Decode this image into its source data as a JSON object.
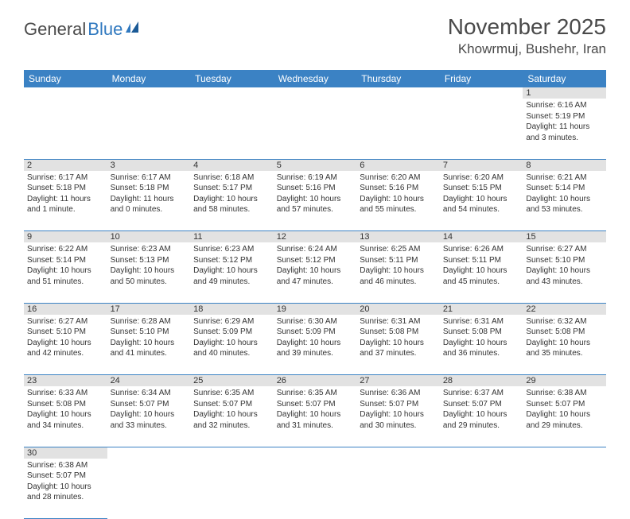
{
  "header": {
    "logo_general": "General",
    "logo_blue": "Blue",
    "month_title": "November 2025",
    "location": "Khowrmuj, Bushehr, Iran"
  },
  "colors": {
    "header_bg": "#3b82c4",
    "header_text": "#ffffff",
    "daynum_bg": "#e2e2e2",
    "border": "#3b82c4",
    "text": "#333333",
    "logo_gray": "#4a4a4a",
    "logo_blue": "#2f78bf"
  },
  "weekdays": [
    "Sunday",
    "Monday",
    "Tuesday",
    "Wednesday",
    "Thursday",
    "Friday",
    "Saturday"
  ],
  "weeks": [
    [
      null,
      null,
      null,
      null,
      null,
      null,
      {
        "n": "1",
        "sr": "Sunrise: 6:16 AM",
        "ss": "Sunset: 5:19 PM",
        "dl": "Daylight: 11 hours and 3 minutes."
      }
    ],
    [
      {
        "n": "2",
        "sr": "Sunrise: 6:17 AM",
        "ss": "Sunset: 5:18 PM",
        "dl": "Daylight: 11 hours and 1 minute."
      },
      {
        "n": "3",
        "sr": "Sunrise: 6:17 AM",
        "ss": "Sunset: 5:18 PM",
        "dl": "Daylight: 11 hours and 0 minutes."
      },
      {
        "n": "4",
        "sr": "Sunrise: 6:18 AM",
        "ss": "Sunset: 5:17 PM",
        "dl": "Daylight: 10 hours and 58 minutes."
      },
      {
        "n": "5",
        "sr": "Sunrise: 6:19 AM",
        "ss": "Sunset: 5:16 PM",
        "dl": "Daylight: 10 hours and 57 minutes."
      },
      {
        "n": "6",
        "sr": "Sunrise: 6:20 AM",
        "ss": "Sunset: 5:16 PM",
        "dl": "Daylight: 10 hours and 55 minutes."
      },
      {
        "n": "7",
        "sr": "Sunrise: 6:20 AM",
        "ss": "Sunset: 5:15 PM",
        "dl": "Daylight: 10 hours and 54 minutes."
      },
      {
        "n": "8",
        "sr": "Sunrise: 6:21 AM",
        "ss": "Sunset: 5:14 PM",
        "dl": "Daylight: 10 hours and 53 minutes."
      }
    ],
    [
      {
        "n": "9",
        "sr": "Sunrise: 6:22 AM",
        "ss": "Sunset: 5:14 PM",
        "dl": "Daylight: 10 hours and 51 minutes."
      },
      {
        "n": "10",
        "sr": "Sunrise: 6:23 AM",
        "ss": "Sunset: 5:13 PM",
        "dl": "Daylight: 10 hours and 50 minutes."
      },
      {
        "n": "11",
        "sr": "Sunrise: 6:23 AM",
        "ss": "Sunset: 5:12 PM",
        "dl": "Daylight: 10 hours and 49 minutes."
      },
      {
        "n": "12",
        "sr": "Sunrise: 6:24 AM",
        "ss": "Sunset: 5:12 PM",
        "dl": "Daylight: 10 hours and 47 minutes."
      },
      {
        "n": "13",
        "sr": "Sunrise: 6:25 AM",
        "ss": "Sunset: 5:11 PM",
        "dl": "Daylight: 10 hours and 46 minutes."
      },
      {
        "n": "14",
        "sr": "Sunrise: 6:26 AM",
        "ss": "Sunset: 5:11 PM",
        "dl": "Daylight: 10 hours and 45 minutes."
      },
      {
        "n": "15",
        "sr": "Sunrise: 6:27 AM",
        "ss": "Sunset: 5:10 PM",
        "dl": "Daylight: 10 hours and 43 minutes."
      }
    ],
    [
      {
        "n": "16",
        "sr": "Sunrise: 6:27 AM",
        "ss": "Sunset: 5:10 PM",
        "dl": "Daylight: 10 hours and 42 minutes."
      },
      {
        "n": "17",
        "sr": "Sunrise: 6:28 AM",
        "ss": "Sunset: 5:10 PM",
        "dl": "Daylight: 10 hours and 41 minutes."
      },
      {
        "n": "18",
        "sr": "Sunrise: 6:29 AM",
        "ss": "Sunset: 5:09 PM",
        "dl": "Daylight: 10 hours and 40 minutes."
      },
      {
        "n": "19",
        "sr": "Sunrise: 6:30 AM",
        "ss": "Sunset: 5:09 PM",
        "dl": "Daylight: 10 hours and 39 minutes."
      },
      {
        "n": "20",
        "sr": "Sunrise: 6:31 AM",
        "ss": "Sunset: 5:08 PM",
        "dl": "Daylight: 10 hours and 37 minutes."
      },
      {
        "n": "21",
        "sr": "Sunrise: 6:31 AM",
        "ss": "Sunset: 5:08 PM",
        "dl": "Daylight: 10 hours and 36 minutes."
      },
      {
        "n": "22",
        "sr": "Sunrise: 6:32 AM",
        "ss": "Sunset: 5:08 PM",
        "dl": "Daylight: 10 hours and 35 minutes."
      }
    ],
    [
      {
        "n": "23",
        "sr": "Sunrise: 6:33 AM",
        "ss": "Sunset: 5:08 PM",
        "dl": "Daylight: 10 hours and 34 minutes."
      },
      {
        "n": "24",
        "sr": "Sunrise: 6:34 AM",
        "ss": "Sunset: 5:07 PM",
        "dl": "Daylight: 10 hours and 33 minutes."
      },
      {
        "n": "25",
        "sr": "Sunrise: 6:35 AM",
        "ss": "Sunset: 5:07 PM",
        "dl": "Daylight: 10 hours and 32 minutes."
      },
      {
        "n": "26",
        "sr": "Sunrise: 6:35 AM",
        "ss": "Sunset: 5:07 PM",
        "dl": "Daylight: 10 hours and 31 minutes."
      },
      {
        "n": "27",
        "sr": "Sunrise: 6:36 AM",
        "ss": "Sunset: 5:07 PM",
        "dl": "Daylight: 10 hours and 30 minutes."
      },
      {
        "n": "28",
        "sr": "Sunrise: 6:37 AM",
        "ss": "Sunset: 5:07 PM",
        "dl": "Daylight: 10 hours and 29 minutes."
      },
      {
        "n": "29",
        "sr": "Sunrise: 6:38 AM",
        "ss": "Sunset: 5:07 PM",
        "dl": "Daylight: 10 hours and 29 minutes."
      }
    ],
    [
      {
        "n": "30",
        "sr": "Sunrise: 6:38 AM",
        "ss": "Sunset: 5:07 PM",
        "dl": "Daylight: 10 hours and 28 minutes."
      },
      null,
      null,
      null,
      null,
      null,
      null
    ]
  ]
}
